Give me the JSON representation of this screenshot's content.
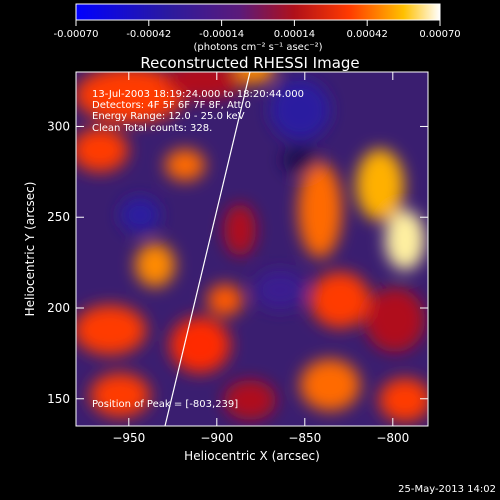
{
  "colorbar": {
    "ticks": [
      "-0.00070",
      "-0.00042",
      "-0.00014",
      "0.00014",
      "0.00042",
      "0.00070"
    ],
    "units": "(photons cm⁻² s⁻¹ asec⁻²)"
  },
  "chart_data": {
    "type": "heatmap",
    "title": "Reconstructed RHESSI Image",
    "xlabel": "Heliocentric X (arcsec)",
    "ylabel": "Heliocentric Y (arcsec)",
    "xlim": [
      -980,
      -780
    ],
    "ylim": [
      135,
      330
    ],
    "xticks": [
      -950,
      -900,
      -850,
      -800
    ],
    "yticks": [
      150,
      200,
      250,
      300
    ],
    "zlim": [
      -0.0007,
      0.0007
    ],
    "annotations": [
      "13-Jul-2003 18:19:24.000 to 18:20:44.000",
      "Detectors: 4F 5F 6F 7F 8F, Att 0",
      "Energy Range: 12.0 - 25.0 keV",
      "Clean    Total counts: 328."
    ],
    "peak_label": "Position of Peak = [-803,239]",
    "peak": [
      -803,
      239
    ]
  },
  "footer": {
    "date": "25-May-2013 14:02"
  }
}
